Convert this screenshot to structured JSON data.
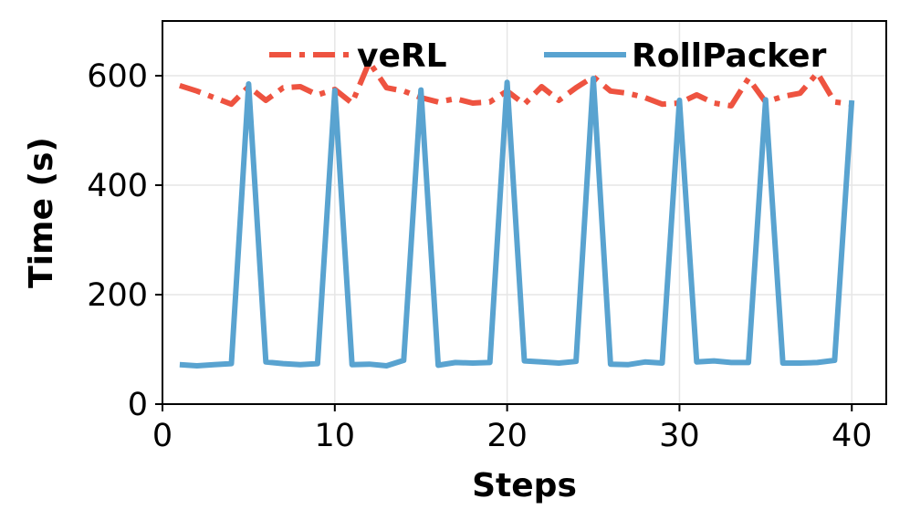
{
  "chart_data": {
    "type": "line",
    "title": "",
    "xlabel": "Steps",
    "ylabel": "Time (s)",
    "xlim": [
      0,
      42
    ],
    "ylim": [
      0,
      700
    ],
    "xticks": [
      0,
      10,
      20,
      30,
      40
    ],
    "yticks": [
      0,
      200,
      400,
      600
    ],
    "grid": true,
    "legend_position": "top-right",
    "x": [
      1,
      2,
      3,
      4,
      5,
      6,
      7,
      8,
      9,
      10,
      11,
      12,
      13,
      14,
      15,
      16,
      17,
      18,
      19,
      20,
      21,
      22,
      23,
      24,
      25,
      26,
      27,
      28,
      29,
      30,
      31,
      32,
      33,
      34,
      35,
      36,
      37,
      38,
      39,
      40
    ],
    "series": [
      {
        "name": "veRL",
        "color": "#ee5340",
        "style": "dashdot",
        "values": [
          582,
          572,
          560,
          548,
          580,
          555,
          578,
          580,
          565,
          575,
          550,
          625,
          578,
          572,
          560,
          552,
          558,
          550,
          552,
          572,
          548,
          580,
          555,
          578,
          598,
          572,
          568,
          560,
          548,
          550,
          565,
          550,
          545,
          595,
          552,
          562,
          568,
          605,
          552,
          548
        ]
      },
      {
        "name": "RollPacker",
        "color": "#59a3d0",
        "style": "solid",
        "values": [
          72,
          70,
          72,
          74,
          585,
          77,
          74,
          72,
          74,
          573,
          72,
          73,
          70,
          80,
          574,
          71,
          76,
          75,
          76,
          588,
          79,
          77,
          75,
          78,
          595,
          73,
          72,
          77,
          75,
          555,
          77,
          79,
          76,
          76,
          556,
          75,
          75,
          76,
          80,
          555
        ]
      }
    ]
  }
}
